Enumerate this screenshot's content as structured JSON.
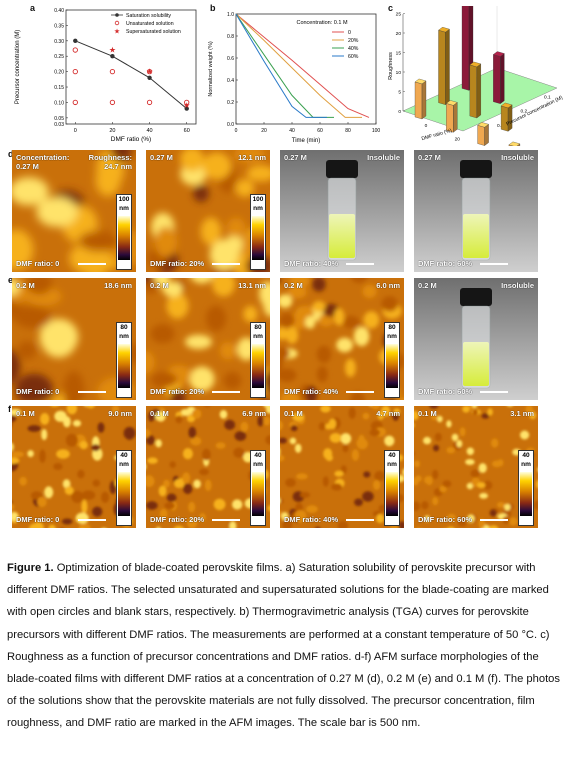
{
  "panel_a": {
    "label": "a",
    "chart_data": {
      "type": "scatter",
      "xlabel": "DMF ratio (%)",
      "ylabel": "Precursor concentration (M)",
      "xlim": [
        -5,
        65
      ],
      "ylim": [
        0.03,
        0.4
      ],
      "xticks": [
        "0",
        "20",
        "40",
        "60"
      ],
      "yticks": [
        "0.03",
        "0.05",
        "0.10",
        "0.15",
        "0.20",
        "0.25",
        "0.30",
        "0.35",
        "0.40"
      ],
      "legend_position": "top-right",
      "series": [
        {
          "name": "Saturation solubility",
          "x": [
            0,
            20,
            40,
            60
          ],
          "y": [
            0.3,
            0.25,
            0.18,
            0.08
          ],
          "color": "#333333"
        },
        {
          "name": "Unsaturated solution",
          "x": [
            0,
            0,
            0,
            20,
            20,
            40,
            40,
            60
          ],
          "y": [
            0.27,
            0.2,
            0.1,
            0.2,
            0.1,
            0.2,
            0.1,
            0.1
          ],
          "color": "#d42b2b"
        },
        {
          "name": "Supersaturated solution",
          "x": [
            20,
            40,
            60
          ],
          "y": [
            0.27,
            0.2,
            0.09
          ],
          "color": "#d42b2b"
        }
      ]
    }
  },
  "panel_b": {
    "label": "b",
    "chart_data": {
      "type": "line",
      "xlabel": "Time (min)",
      "ylabel": "Normalized weight (%)",
      "xlim": [
        0,
        100
      ],
      "ylim": [
        0,
        1.0
      ],
      "xticks": [
        "0",
        "20",
        "40",
        "60",
        "80",
        "100"
      ],
      "yticks": [
        "0.0",
        "0.2",
        "0.4",
        "0.6",
        "0.8",
        "1.0"
      ],
      "annotation": "Concentration: 0.1 M",
      "legend_position": "top-right",
      "series": [
        {
          "name": "0",
          "color": "#e05050",
          "x": [
            0,
            20,
            40,
            60,
            80,
            95
          ],
          "y": [
            1.0,
            0.79,
            0.58,
            0.36,
            0.14,
            0.06
          ]
        },
        {
          "name": "20%",
          "color": "#e0a040",
          "x": [
            0,
            20,
            40,
            60,
            78,
            90
          ],
          "y": [
            1.0,
            0.76,
            0.51,
            0.26,
            0.06,
            0.06
          ]
        },
        {
          "name": "40%",
          "color": "#3aa050",
          "x": [
            0,
            20,
            40,
            55,
            70
          ],
          "y": [
            1.0,
            0.63,
            0.26,
            0.06,
            0.06
          ]
        },
        {
          "name": "60%",
          "color": "#2a7ac8",
          "x": [
            0,
            20,
            40,
            50,
            65
          ],
          "y": [
            1.0,
            0.57,
            0.16,
            0.06,
            0.06
          ]
        }
      ]
    }
  },
  "panel_c": {
    "label": "c",
    "chart_data": {
      "type": "bar",
      "ylabel": "Roughness",
      "xlabel": "DMF ratio (%)",
      "zlabel": "Precursor concentration (M)",
      "ylim": [
        0,
        25
      ],
      "yticks": [
        "0",
        "5",
        "10",
        "15",
        "20",
        "25"
      ],
      "xticks": [
        "0",
        "20",
        "40",
        "60"
      ],
      "zticks": [
        "0.27",
        "0.2",
        "0.1"
      ],
      "colors": [
        "#8b1a3a",
        "#b8861e",
        "#f0a850"
      ],
      "series": [
        {
          "name": "0.27 M",
          "values": [
            24.7,
            12.1
          ]
        },
        {
          "name": "0.2 M",
          "values": [
            18.6,
            13.1,
            6.0
          ]
        },
        {
          "name": "0.1 M",
          "values": [
            9.0,
            6.9,
            4.7,
            3.1
          ]
        }
      ]
    }
  },
  "panel_d": {
    "label": "d",
    "tiles": [
      {
        "type": "afm",
        "tl": "Concentration:",
        "tl2": "0.27 M",
        "tr": "Roughness:",
        "tr2": "24.7 nm",
        "bl": "DMF ratio: 0",
        "cmax": "100",
        "unit": "nm",
        "cmin": "-100"
      },
      {
        "type": "afm",
        "tl": "0.27 M",
        "tr": "12.1 nm",
        "bl": "DMF ratio: 20%",
        "cmax": "100",
        "unit": "nm",
        "cmin": "-100"
      },
      {
        "type": "photo",
        "tl": "0.27 M",
        "tr": "Insoluble",
        "bl": "DMF ratio: 40%"
      },
      {
        "type": "photo",
        "tl": "0.27 M",
        "tr": "Insoluble",
        "bl": "DMF ratio: 60%"
      }
    ]
  },
  "panel_e": {
    "label": "e",
    "tiles": [
      {
        "type": "afm",
        "tl": "0.2 M",
        "tr": "18.6 nm",
        "bl": "DMF ratio: 0",
        "cmax": "80",
        "unit": "nm",
        "cmin": "-80"
      },
      {
        "type": "afm",
        "tl": "0.2 M",
        "tr": "13.1 nm",
        "bl": "DMF ratio: 20%",
        "cmax": "80",
        "unit": "nm",
        "cmin": "-80"
      },
      {
        "type": "afm",
        "tl": "0.2 M",
        "tr": "6.0 nm",
        "bl": "DMF ratio: 40%",
        "cmax": "80",
        "unit": "nm",
        "cmin": "-80"
      },
      {
        "type": "photo",
        "tl": "0.2 M",
        "tr": "Insoluble",
        "bl": "DMF ratio: 60%"
      }
    ]
  },
  "panel_f": {
    "label": "f",
    "tiles": [
      {
        "type": "afm",
        "tl": "0.1 M",
        "tr": "9.0 nm",
        "bl": "DMF ratio: 0",
        "cmax": "40",
        "unit": "nm",
        "cmin": "-40"
      },
      {
        "type": "afm",
        "tl": "0.1 M",
        "tr": "6.9 nm",
        "bl": "DMF ratio: 20%",
        "cmax": "40",
        "unit": "nm",
        "cmin": "-40"
      },
      {
        "type": "afm",
        "tl": "0.1 M",
        "tr": "4.7 nm",
        "bl": "DMF ratio: 40%",
        "cmax": "40",
        "unit": "nm",
        "cmin": "-40"
      },
      {
        "type": "afm",
        "tl": "0.1 M",
        "tr": "3.1 nm",
        "bl": "DMF ratio: 60%",
        "cmax": "40",
        "unit": "nm",
        "cmin": "-40"
      }
    ]
  },
  "caption": {
    "label": "Figure 1.",
    "text": " Optimization of blade-coated perovskite films. a) Saturation solubility of perovskite precursor with different DMF ratios. The selected unsaturated and supersaturated solutions for the blade-coating are marked with open circles and blank stars, respectively. b) Thermogravimetric analysis (TGA) curves for perovskite precursors with different DMF ratios. The measurements are performed at a constant temperature of 50 °C. c) Roughness as a function of precursor concentrations and DMF ratios. d-f) AFM surface morphologies of the blade-coated films with different DMF ratios at a concentration of 0.27 M (d), 0.2 M (e) and 0.1 M (f). The photos of the solutions show that the perovskite materials are not fully dissolved. The precursor concentration, film roughness, and DMF ratio are marked in the AFM images. The scale bar is 500 nm."
  }
}
